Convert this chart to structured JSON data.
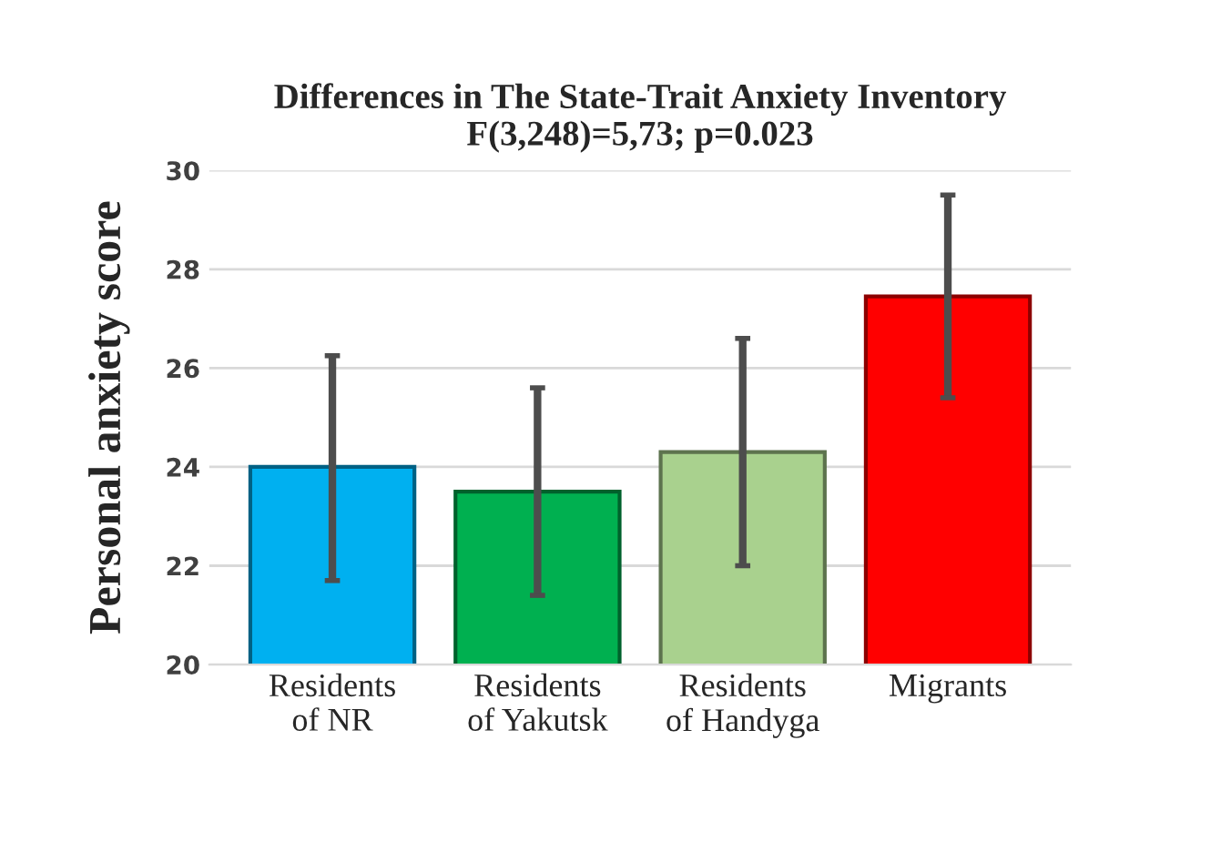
{
  "chart_data": {
    "type": "bar",
    "title": "Differences in The State-Trait Anxiety Inventory\nF(3,248)=5,73; p=0.023",
    "ylabel": "Personal anxiety score",
    "categories": [
      "Residents\nof NR",
      "Residents\nof Yakutsk",
      "Residents\nof Handyga",
      "Migrants"
    ],
    "values": [
      24.0,
      23.5,
      24.3,
      27.45
    ],
    "colors": [
      "#00b0f0",
      "#00b050",
      "#a9d18e",
      "#ff0000"
    ],
    "errors": [
      [
        21.7,
        26.25
      ],
      [
        21.4,
        25.6
      ],
      [
        22.0,
        26.6
      ],
      [
        25.4,
        29.5
      ]
    ],
    "ylim": [
      20,
      30
    ],
    "yticks": [
      20,
      22,
      24,
      26,
      28,
      30
    ],
    "grid": "y",
    "legend": false
  }
}
